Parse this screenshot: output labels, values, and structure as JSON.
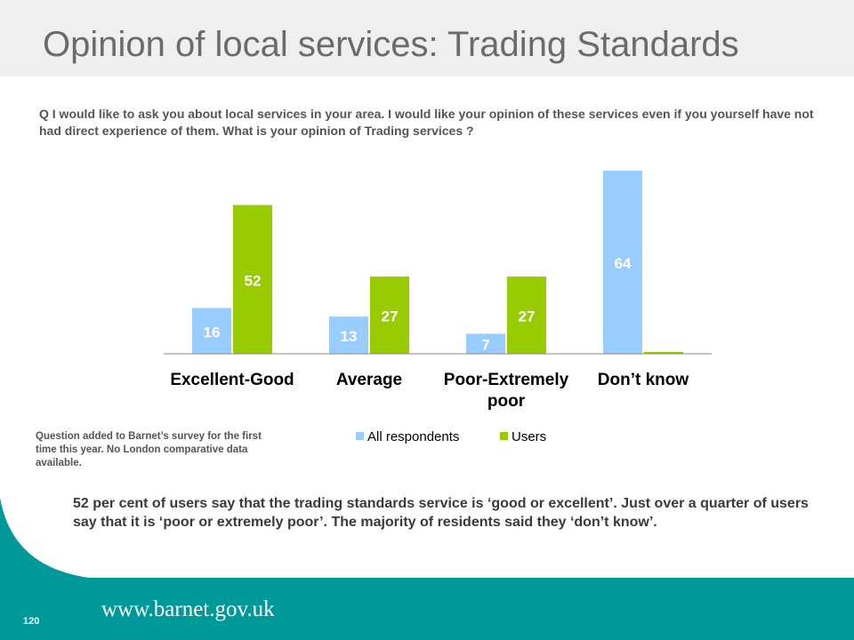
{
  "slide": {
    "title": "Opinion of local services: Trading Standards",
    "question": "Q I would like to ask you about local services in your area. I would like your opinion of these services even if you yourself have not had direct experience of them. What is your opinion of Trading services ?",
    "note": "Question added to Barnet’s survey for the first time this year. No London comparative data available.",
    "summary": "52 per cent of users say that the trading standards service is ‘good or excellent’. Just over a quarter of users say that it is ‘poor or extremely poor’. The majority of residents said they ‘don’t know’.",
    "footer_url": "www.barnet.gov.uk",
    "page_number": "120"
  },
  "colors": {
    "all_respondents": "#99ccff",
    "users": "#99cc00",
    "teal": "#009999",
    "title": "#6b6b6b"
  },
  "chart_data": {
    "type": "bar",
    "categories": [
      "Excellent-Good",
      "Average",
      "Poor-Extremely poor",
      "Don’t know"
    ],
    "series": [
      {
        "name": "All respondents",
        "values": [
          16,
          13,
          7,
          64
        ]
      },
      {
        "name": "Users",
        "values": [
          52,
          27,
          27,
          0
        ]
      }
    ],
    "data_labels": [
      [
        "16",
        "13",
        "7",
        "64"
      ],
      [
        "52",
        "27",
        "27",
        ""
      ]
    ],
    "ylim": [
      0,
      64
    ],
    "grid": false,
    "legend": "bottom",
    "title": "",
    "xlabel": "",
    "ylabel": ""
  }
}
